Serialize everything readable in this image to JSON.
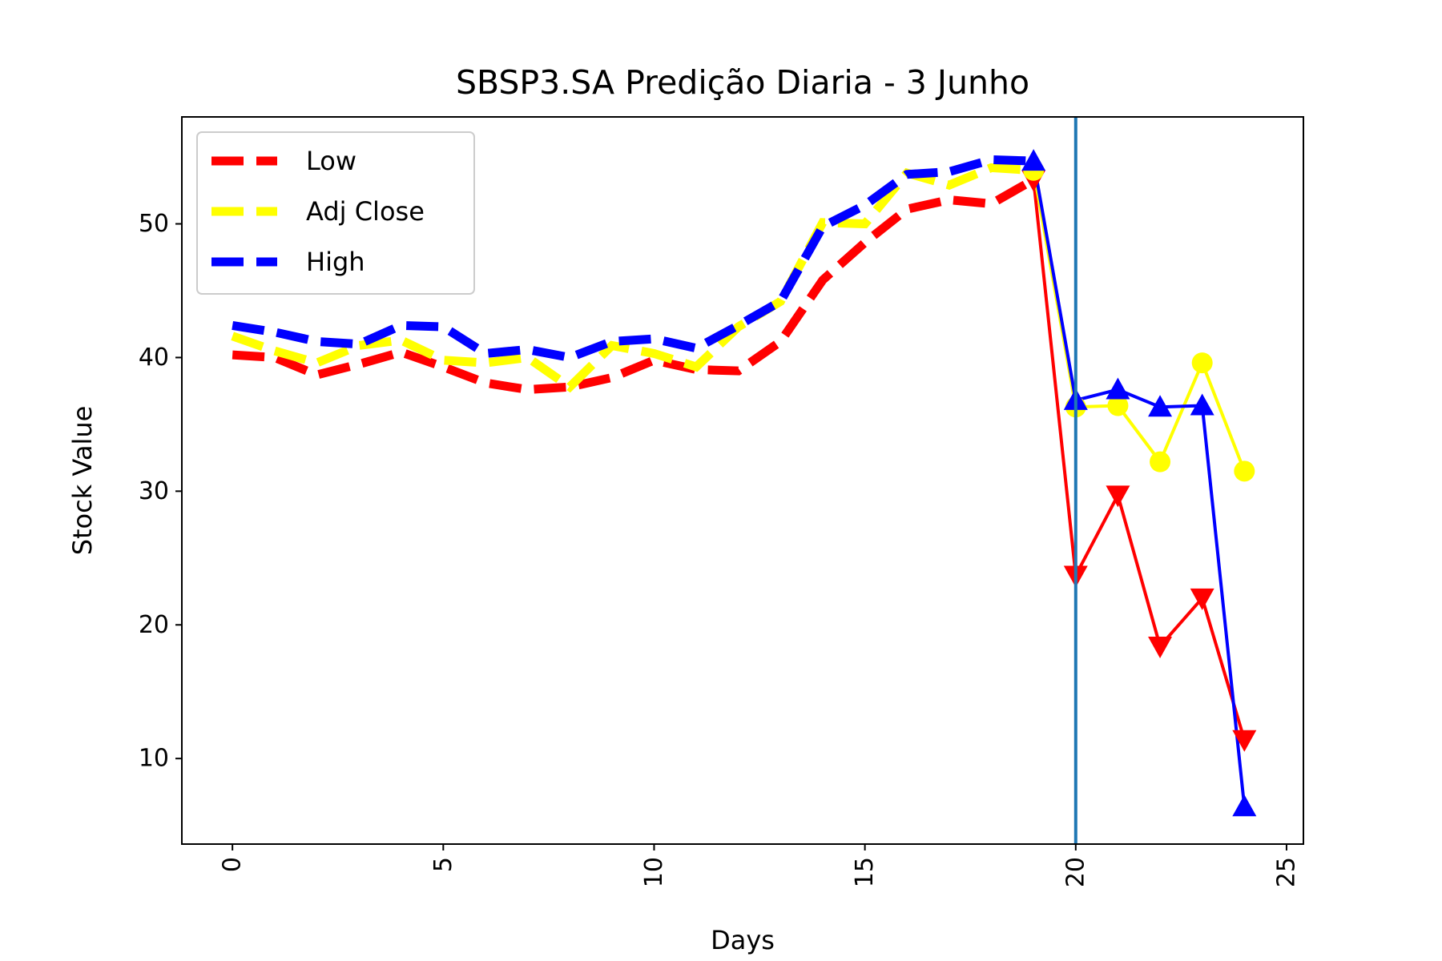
{
  "chart_data": {
    "type": "line",
    "title": "SBSP3.SA Predição Diaria - 3 Junho",
    "xlabel": "Days",
    "ylabel": "Stock Value",
    "xlim": [
      -1.2,
      25.4
    ],
    "ylim": [
      3.6,
      58.0
    ],
    "x_ticks": [
      0,
      5,
      10,
      15,
      20,
      25
    ],
    "y_ticks": [
      10,
      20,
      30,
      40,
      50
    ],
    "grid": false,
    "legend_position": "top-left",
    "prediction_start_x": 20,
    "vertical_line_color": "#1f77b4",
    "historical_x": [
      0,
      1,
      2,
      3,
      4,
      5,
      6,
      7,
      8,
      9,
      10,
      11,
      12,
      13,
      14,
      15,
      16,
      17,
      18,
      19
    ],
    "predicted_x": [
      19,
      20,
      21,
      22,
      23,
      24
    ],
    "series": [
      {
        "name": "Low",
        "color": "#ff0000",
        "marker": "triangle-down",
        "historical": [
          40.2,
          40.0,
          38.7,
          39.5,
          40.4,
          39.3,
          38.1,
          37.6,
          37.8,
          38.5,
          39.8,
          39.1,
          39.0,
          41.2,
          45.8,
          48.6,
          51.1,
          51.8,
          51.5,
          53.3
        ],
        "predicted": [
          53.3,
          23.7,
          29.7,
          18.4,
          22.0,
          11.4
        ]
      },
      {
        "name": "Adj Close",
        "color": "#ffff00",
        "marker": "circle",
        "historical": [
          41.6,
          40.5,
          39.6,
          40.9,
          41.3,
          39.8,
          39.6,
          40.0,
          37.8,
          40.9,
          40.3,
          39.3,
          42.3,
          44.2,
          50.1,
          50.0,
          53.8,
          52.9,
          54.2,
          54.0
        ],
        "predicted": [
          54.0,
          36.3,
          36.4,
          32.2,
          39.6,
          31.5
        ]
      },
      {
        "name": "High",
        "color": "#0000ff",
        "marker": "triangle-up",
        "historical": [
          42.4,
          41.9,
          41.2,
          41.0,
          42.4,
          42.3,
          40.3,
          40.6,
          40.0,
          41.2,
          41.4,
          40.7,
          42.4,
          44.2,
          49.8,
          51.4,
          53.7,
          53.9,
          54.8,
          54.7
        ],
        "predicted": [
          54.7,
          36.8,
          37.6,
          36.3,
          36.4,
          6.4
        ]
      }
    ]
  }
}
